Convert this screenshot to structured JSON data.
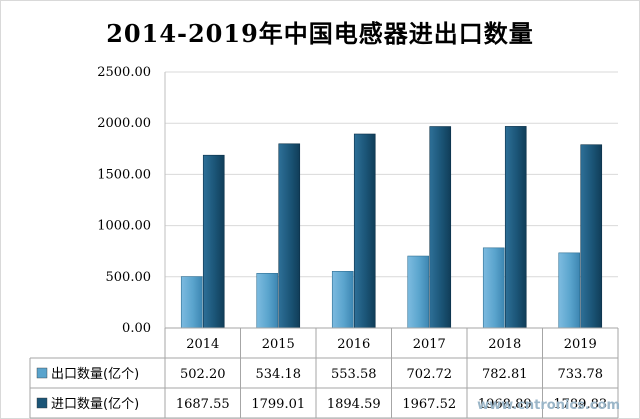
{
  "chart_data": {
    "type": "bar",
    "title": "2014-2019年中国电感器进出口数量",
    "categories": [
      "2014",
      "2015",
      "2016",
      "2017",
      "2018",
      "2019"
    ],
    "series": [
      {
        "name": "出口数量(亿个)",
        "values": [
          502.2,
          534.18,
          553.58,
          702.72,
          782.81,
          733.78
        ],
        "labels": [
          "502.20",
          "534.18",
          "553.58",
          "702.72",
          "782.81",
          "733.78"
        ],
        "color": "#5aa4cd"
      },
      {
        "name": "进口数量(亿个)",
        "values": [
          1687.55,
          1799.01,
          1894.59,
          1967.52,
          1968.89,
          1789.83
        ],
        "labels": [
          "1687.55",
          "1799.01",
          "1894.59",
          "1967.52",
          "1968.89",
          "1789.83"
        ],
        "color": "#1b5577"
      }
    ],
    "yticks": [
      "0.00",
      "500.00",
      "1000.00",
      "1500.00",
      "2000.00",
      "2500.00"
    ],
    "ylim": [
      0,
      2500
    ],
    "grid": true,
    "legend": "data-table"
  },
  "watermark": "www.cntronics.com"
}
